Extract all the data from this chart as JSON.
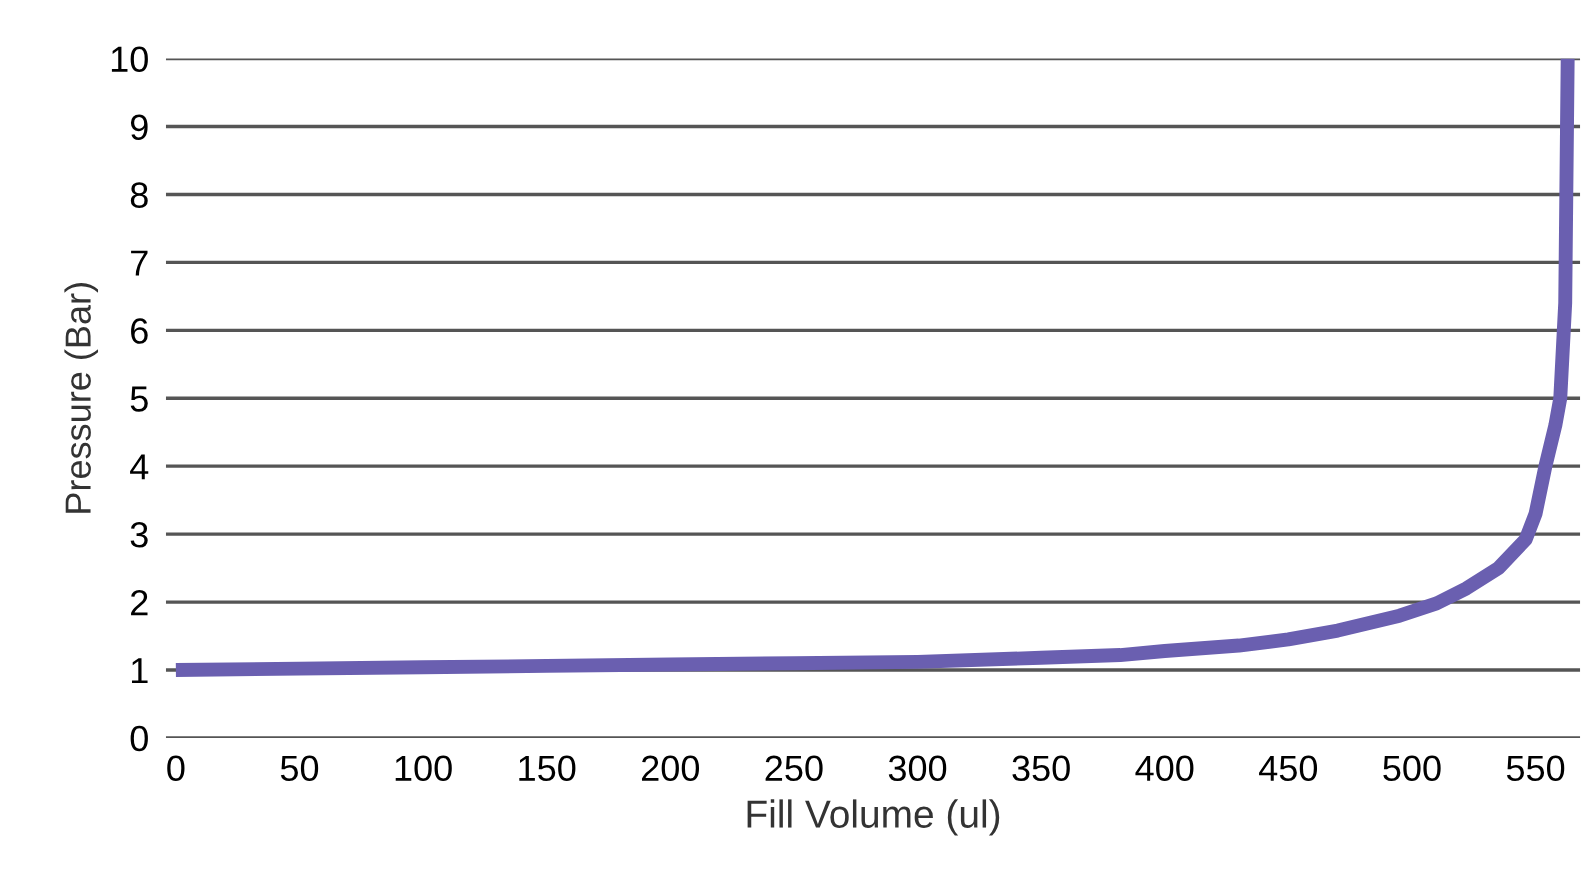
{
  "chart_data": {
    "type": "line",
    "xlabel": "Fill Volume (ul)",
    "ylabel": "Pressure (Bar)",
    "x": [
      0,
      50,
      100,
      150,
      200,
      250,
      300,
      350,
      382,
      400,
      430,
      450,
      470,
      495,
      510,
      522,
      535,
      546,
      550,
      554,
      558,
      560,
      562,
      563
    ],
    "series": [
      {
        "color": "#6a5fb0",
        "values": [
          1.0,
          1.02,
          1.04,
          1.06,
          1.08,
          1.1,
          1.12,
          1.18,
          1.22,
          1.28,
          1.36,
          1.45,
          1.58,
          1.8,
          1.98,
          2.2,
          2.5,
          2.92,
          3.3,
          4.0,
          4.6,
          5.0,
          6.4,
          10.0
        ]
      }
    ],
    "xlim": [
      -4,
      568
    ],
    "ylim": [
      0,
      10
    ],
    "xticks": [
      0,
      50,
      100,
      150,
      200,
      250,
      300,
      350,
      400,
      450,
      500,
      550
    ],
    "yticks": [
      0,
      1,
      2,
      3,
      4,
      5,
      6,
      7,
      8,
      9,
      10
    ],
    "grid": "y",
    "marker": "none",
    "line_style": "solid"
  }
}
